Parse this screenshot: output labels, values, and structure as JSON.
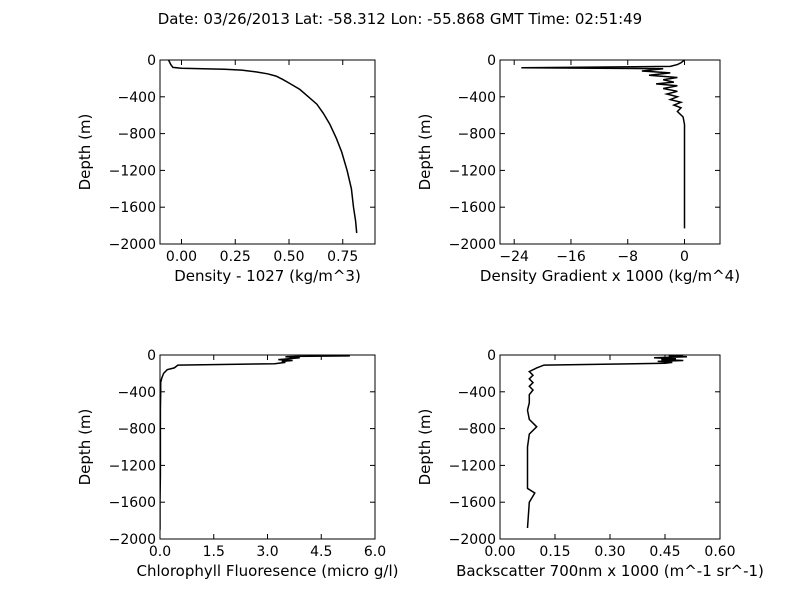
{
  "figure": {
    "title": "Date: 03/26/2013  Lat:  -58.312 Lon:  -55.868  GMT Time: 02:51:49"
  },
  "chart_data": [
    {
      "type": "line",
      "xlabel": "Density - 1027 (kg/m^3)",
      "ylabel": "Depth (m)",
      "xlim": [
        -0.1,
        0.9
      ],
      "ylim": [
        -2000,
        0
      ],
      "xticks": [
        0.0,
        0.25,
        0.5,
        0.75
      ],
      "xtick_labels": [
        "0.00",
        "0.25",
        "0.50",
        "0.75"
      ],
      "yticks": [
        0,
        -400,
        -800,
        -1200,
        -1600,
        -2000
      ],
      "ytick_labels": [
        "0",
        "−400",
        "−800",
        "−1200",
        "−1600",
        "−2000"
      ],
      "grid": false,
      "series": [
        {
          "x": [
            -0.06,
            -0.05,
            -0.04,
            0.0,
            0.1,
            0.2,
            0.28,
            0.35,
            0.4,
            0.44,
            0.47,
            0.5,
            0.55,
            0.59,
            0.63,
            0.66,
            0.69,
            0.72,
            0.745,
            0.77,
            0.79,
            0.8,
            0.81,
            0.815
          ],
          "y": [
            0,
            -50,
            -80,
            -90,
            -95,
            -100,
            -110,
            -130,
            -150,
            -175,
            -210,
            -250,
            -320,
            -400,
            -480,
            -580,
            -700,
            -850,
            -1000,
            -1200,
            -1400,
            -1600,
            -1750,
            -1880
          ]
        }
      ]
    },
    {
      "type": "line",
      "xlabel": "Density Gradient x 1000 (kg/m^4)",
      "ylabel": "Depth (m)",
      "xlim": [
        -26,
        5
      ],
      "ylim": [
        -2000,
        0
      ],
      "xticks": [
        -24,
        -16,
        -8,
        0
      ],
      "xtick_labels": [
        "−24",
        "−16",
        "−8",
        "0"
      ],
      "yticks": [
        0,
        -400,
        -800,
        -1200,
        -1600,
        -2000
      ],
      "ytick_labels": [
        "0",
        "−400",
        "−800",
        "−1200",
        "−1600",
        "−2000"
      ],
      "grid": false,
      "series": [
        {
          "x": [
            0,
            -0.5,
            -1,
            -2,
            -23,
            -3,
            -6,
            -2,
            -5,
            -1,
            -3,
            -1.5,
            -4,
            -1,
            -3,
            -1,
            -2.5,
            -1,
            -2,
            -0.5,
            -1.5,
            -0.5,
            -1,
            -0.2,
            0,
            0,
            0,
            0,
            0
          ],
          "y": [
            0,
            -30,
            -50,
            -70,
            -85,
            -95,
            -120,
            -140,
            -165,
            -190,
            -215,
            -240,
            -260,
            -280,
            -310,
            -340,
            -370,
            -400,
            -430,
            -460,
            -490,
            -520,
            -560,
            -620,
            -700,
            -900,
            -1200,
            -1500,
            -1830
          ]
        }
      ]
    },
    {
      "type": "line",
      "xlabel": "Chlorophyll Fluoresence (micro g/l)",
      "ylabel": "Depth (m)",
      "xlim": [
        0,
        6
      ],
      "ylim": [
        -2000,
        0
      ],
      "xticks": [
        0.0,
        1.5,
        3.0,
        4.5,
        6.0
      ],
      "xtick_labels": [
        "0.0",
        "1.5",
        "3.0",
        "4.5",
        "6.0"
      ],
      "yticks": [
        0,
        -400,
        -800,
        -1200,
        -1600,
        -2000
      ],
      "ytick_labels": [
        "0",
        "−400",
        "−800",
        "−1200",
        "−1600",
        "−2000"
      ],
      "grid": false,
      "series": [
        {
          "x": [
            5.3,
            3.8,
            3.5,
            3.9,
            3.6,
            3.3,
            3.7,
            3.4,
            3.5,
            3.2,
            0.5,
            0.4,
            0.2,
            0.1,
            0.05,
            0.02,
            0.02,
            0.01,
            0.01,
            0.01,
            0.0,
            0.0
          ],
          "y": [
            -10,
            -15,
            -20,
            -30,
            -40,
            -50,
            -60,
            -70,
            -80,
            -95,
            -110,
            -140,
            -160,
            -200,
            -250,
            -300,
            -400,
            -600,
            -900,
            -1300,
            -1600,
            -1900
          ]
        }
      ]
    },
    {
      "type": "line",
      "xlabel": "Backscatter 700nm x 1000 (m^-1 sr^-1)",
      "ylabel": "Depth (m)",
      "xlim": [
        0,
        0.6
      ],
      "ylim": [
        -2000,
        0
      ],
      "xticks": [
        0.0,
        0.15,
        0.3,
        0.45,
        0.6
      ],
      "xtick_labels": [
        "0.00",
        "0.15",
        "0.30",
        "0.45",
        "0.60"
      ],
      "yticks": [
        0,
        -400,
        -800,
        -1200,
        -1600,
        -2000
      ],
      "ytick_labels": [
        "0",
        "−400",
        "−800",
        "−1200",
        "−1600",
        "−2000"
      ],
      "grid": false,
      "series": [
        {
          "x": [
            0.5,
            0.46,
            0.51,
            0.42,
            0.48,
            0.44,
            0.5,
            0.43,
            0.47,
            0.45,
            0.12,
            0.1,
            0.08,
            0.09,
            0.08,
            0.09,
            0.08,
            0.09,
            0.08,
            0.08,
            0.08,
            0.075,
            0.08,
            0.1,
            0.08,
            0.075,
            0.075,
            0.075,
            0.075,
            0.095,
            0.08,
            0.075
          ],
          "y": [
            0,
            -10,
            -20,
            -30,
            -40,
            -50,
            -60,
            -70,
            -80,
            -90,
            -110,
            -140,
            -180,
            -220,
            -260,
            -300,
            -340,
            -380,
            -430,
            -480,
            -520,
            -600,
            -700,
            -780,
            -860,
            -1000,
            -1200,
            -1350,
            -1450,
            -1500,
            -1600,
            -1880
          ]
        }
      ]
    }
  ]
}
